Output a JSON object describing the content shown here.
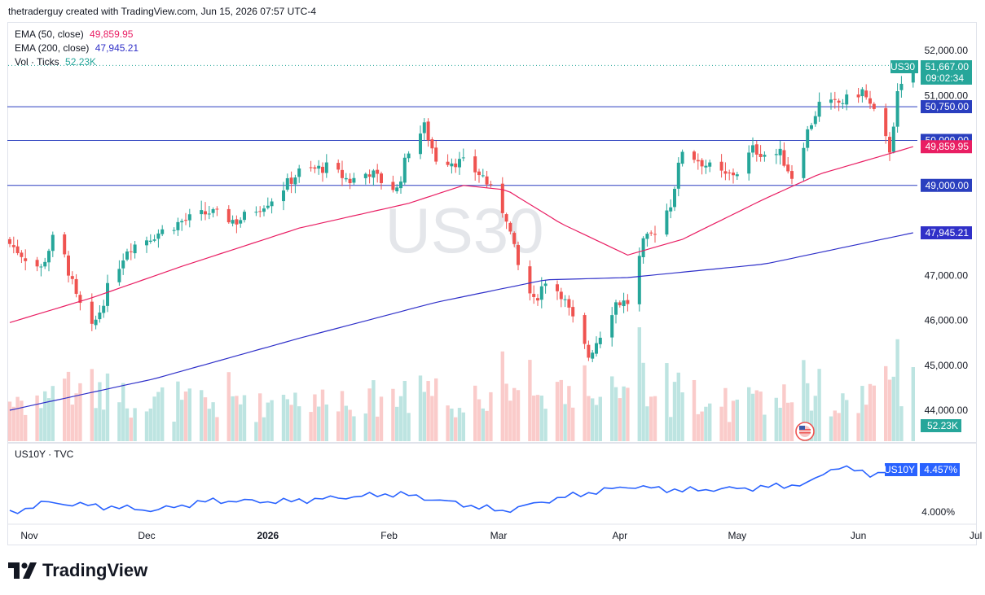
{
  "header": {
    "credit": "thetraderguy created with TradingView.com, Jun 15, 2026 07:57 UTC-4"
  },
  "legend": {
    "ema50_label": "EMA (50, close)",
    "ema50_value": "49,859.95",
    "ema200_label": "EMA (200, close)",
    "ema200_value": "47,945.21",
    "vol_label": "Vol · Ticks",
    "vol_value": "52.23K"
  },
  "watermark": "US30",
  "symbol_tag": "US30",
  "price_tag": {
    "price": "51,667.00",
    "countdown": "09:02:34"
  },
  "price_axis": {
    "ticks": [
      {
        "value": 52000,
        "label": "52,000.00"
      },
      {
        "value": 51000,
        "label": "51,000.00"
      },
      {
        "value": 47000,
        "label": "47,000.00"
      },
      {
        "value": 46000,
        "label": "46,000.00"
      },
      {
        "value": 45000,
        "label": "45,000.00"
      },
      {
        "value": 44000,
        "label": "44,000.00"
      }
    ]
  },
  "horizontal_lines": [
    {
      "value": 50750,
      "label": "50,750.00"
    },
    {
      "value": 50000,
      "label": "50,000.00"
    },
    {
      "value": 49000,
      "label": "49,000.00"
    }
  ],
  "ema_tags": [
    {
      "value": 49859.95,
      "label": "49,859.95",
      "color": "#e91e63"
    },
    {
      "value": 47945.21,
      "label": "47,945.21",
      "color": "#3030c8"
    }
  ],
  "volume_tag": "52.23K",
  "time_axis": [
    "Nov",
    "Dec",
    "2026",
    "Feb",
    "Mar",
    "Apr",
    "May",
    "Jun",
    "Jul"
  ],
  "sub_pane": {
    "title": "US10Y · TVC",
    "symbol_tag": "US10Y",
    "value_tag": "4.457%",
    "ticks": [
      {
        "value": 4.0,
        "label": "4.000%"
      }
    ]
  },
  "colors": {
    "up": "#26a69a",
    "down": "#ef5350",
    "ema50": "#e91e63",
    "ema200": "#2f30c9",
    "hline": "#2a3fbf",
    "yield": "#2962ff"
  },
  "chart_data": [
    {
      "type": "candlestick",
      "symbol": "US30",
      "ohlc_anchor_closes": [
        [
          "Oct 27",
          47700
        ],
        [
          "Oct 31",
          47400
        ],
        [
          "Nov 4",
          47150
        ],
        [
          "Nov 7",
          47800
        ],
        [
          "Nov 10",
          47400
        ],
        [
          "Nov 13",
          46500
        ],
        [
          "Nov 17",
          45800
        ],
        [
          "Nov 19",
          46200
        ],
        [
          "Nov 21",
          46700
        ],
        [
          "Nov 26",
          47600
        ],
        [
          "Dec 3",
          47900
        ],
        [
          "Dec 10",
          48200
        ],
        [
          "Dec 17",
          48400
        ],
        [
          "Dec 24",
          48200
        ],
        [
          "Jan 2",
          48700
        ],
        [
          "Jan 9",
          49300
        ],
        [
          "Jan 16",
          49400
        ],
        [
          "Jan 22",
          49100
        ],
        [
          "Jan 27",
          49300
        ],
        [
          "Jan 30",
          49100
        ],
        [
          "Feb 3",
          48900
        ],
        [
          "Feb 6",
          49800
        ],
        [
          "Feb 10",
          50300
        ],
        [
          "Feb 13",
          49600
        ],
        [
          "Feb 20",
          49500
        ],
        [
          "Feb 25",
          49200
        ],
        [
          "Mar 3",
          48300
        ],
        [
          "Mar 6",
          47200
        ],
        [
          "Mar 10",
          46400
        ],
        [
          "Mar 13",
          46900
        ],
        [
          "Mar 17",
          46600
        ],
        [
          "Mar 20",
          46000
        ],
        [
          "Mar 24",
          45200
        ],
        [
          "Mar 27",
          45700
        ],
        [
          "Mar 31",
          46400
        ],
        [
          "Apr 3",
          46400
        ],
        [
          "Apr 7",
          47700
        ],
        [
          "Apr 10",
          48000
        ],
        [
          "Apr 14",
          48600
        ],
        [
          "Apr 17",
          49800
        ],
        [
          "Apr 24",
          49400
        ],
        [
          "Apr 28",
          49200
        ],
        [
          "May 1",
          49300
        ],
        [
          "May 5",
          49800
        ],
        [
          "May 8",
          49700
        ],
        [
          "May 12",
          49700
        ],
        [
          "May 15",
          49200
        ],
        [
          "May 19",
          50200
        ],
        [
          "May 22",
          50800
        ],
        [
          "May 26",
          50800
        ],
        [
          "May 29",
          50900
        ],
        [
          "Jun 2",
          51100
        ],
        [
          "Jun 5",
          50600
        ],
        [
          "Jun 9",
          49800
        ],
        [
          "Jun 11",
          51000
        ],
        [
          "Jun 15",
          51667
        ]
      ],
      "ema50": [
        [
          "Oct 27",
          45950
        ],
        [
          "Nov 17",
          46500
        ],
        [
          "Dec 10",
          47200
        ],
        [
          "Jan 9",
          48050
        ],
        [
          "Feb 6",
          48600
        ],
        [
          "Feb 20",
          49000
        ],
        [
          "Mar 3",
          48900
        ],
        [
          "Mar 17",
          48150
        ],
        [
          "Apr 3",
          47450
        ],
        [
          "Apr 17",
          47800
        ],
        [
          "May 8",
          48700
        ],
        [
          "May 22",
          49250
        ],
        [
          "Jun 15",
          49859.95
        ]
      ],
      "ema200": [
        [
          "Oct 27",
          44000
        ],
        [
          "Dec 3",
          44700
        ],
        [
          "Jan 9",
          45600
        ],
        [
          "Feb 13",
          46400
        ],
        [
          "Mar 13",
          46900
        ],
        [
          "Apr 3",
          46950
        ],
        [
          "May 8",
          47250
        ],
        [
          "Jun 15",
          47945.21
        ]
      ],
      "ylim": [
        43700,
        52500
      ],
      "last_volume": "52.23K"
    },
    {
      "type": "line",
      "symbol": "US10Y",
      "points": [
        [
          "Oct 27",
          3.98
        ],
        [
          "Nov 5",
          4.12
        ],
        [
          "Nov 20",
          4.07
        ],
        [
          "Dec 3",
          4.02
        ],
        [
          "Dec 17",
          4.14
        ],
        [
          "Jan 5",
          4.13
        ],
        [
          "Feb 3",
          4.23
        ],
        [
          "Feb 17",
          4.12
        ],
        [
          "Mar 2",
          4.01
        ],
        [
          "Mar 17",
          4.18
        ],
        [
          "Apr 3",
          4.32
        ],
        [
          "Apr 17",
          4.27
        ],
        [
          "May 5",
          4.3
        ],
        [
          "May 19",
          4.35
        ],
        [
          "May 26",
          4.57
        ],
        [
          "Jun 5",
          4.47
        ],
        [
          "Jun 11",
          4.53
        ],
        [
          "Jun 15",
          4.457
        ]
      ],
      "ylim": [
        3.88,
        4.65
      ]
    }
  ]
}
